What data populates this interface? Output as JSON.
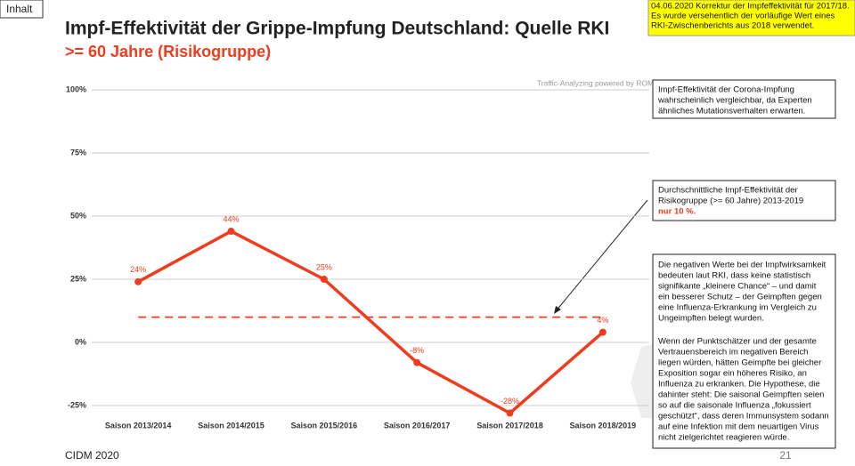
{
  "slide": {
    "button": "Inhalt",
    "correction_note": [
      "04.06.2020 Korrektur der Impfeffektivität für 2017/18.",
      "Es wurde versehentlich der vorläufige Wert eines",
      "RKI-Zwischenberichts aus 2018 verwendet."
    ],
    "watermark": "Traffic-Analyzing powered by ROMICO",
    "box_corona": [
      "Impf-Effektivität der Corona-Impfung",
      "wahrscheinlich vergleichbar, da Experten",
      "ähnliches Mutationsverhalten erwarten."
    ],
    "box_average": [
      "Durchschnittliche Impf-Effektivität der",
      "Risikogruppe (>= 60 Jahre) 2013-2019"
    ],
    "box_average_highlight": "nur 10 %.",
    "box_negative": [
      "Die negativen Werte bei der Impfwirksamkeit",
      "bedeuten laut RKI, dass keine statistisch",
      "signifikante „kleinere Chance“ – und damit",
      "ein besserer Schutz – der Geimpften gegen",
      "eine Influenza-Erkrankung im Vergleich zu",
      "Ungeimpften belegt wurden."
    ],
    "box_hypothesis": [
      "Wenn der Punktschätzer und der gesamte",
      "Vertrauensbereich im negativen Bereich",
      "liegen würden, hätten Geimpfte bei gleicher",
      "Exposition sogar ein höheres Risiko, an",
      "Influenza zu erkranken. Die Hypothese, die",
      "dahinter steht: Die saisonal Geimpften seien",
      "so auf die saisonale Influenza „fokussiert",
      "geschützt“, dass deren Immunsystem sodann",
      "auf eine Infektion mit dem neuartigen Virus",
      "nicht zielgerichtet reagieren würde."
    ],
    "footer": "CIDM 2020",
    "page_number": "21"
  },
  "chart_data": {
    "type": "line",
    "title": "Impf-Effektivität der Grippe-Impfung Deutschland: Quelle RKI",
    "subtitle": ">= 60 Jahre (Risikogruppe)",
    "categories": [
      "Saison 2013/2014",
      "Saison 2014/2015",
      "Saison 2015/2016",
      "Saison 2016/2017",
      "Saison 2017/2018",
      "Saison 2018/2019"
    ],
    "values": [
      24,
      44,
      25,
      -8,
      -28,
      4
    ],
    "value_labels": [
      "24%",
      "44%",
      "25%",
      "-8%",
      "-28%",
      "4%"
    ],
    "color": "#f03c1e",
    "average": 10,
    "ylim": [
      -25,
      100
    ],
    "yticks": [
      {
        "value": -25,
        "label": "-25%"
      },
      {
        "value": 0,
        "label": "0%"
      },
      {
        "value": 25,
        "label": "25%"
      },
      {
        "value": 50,
        "label": "50%"
      },
      {
        "value": 75,
        "label": "75%"
      },
      {
        "value": 100,
        "label": "100%"
      }
    ],
    "grid": true
  }
}
